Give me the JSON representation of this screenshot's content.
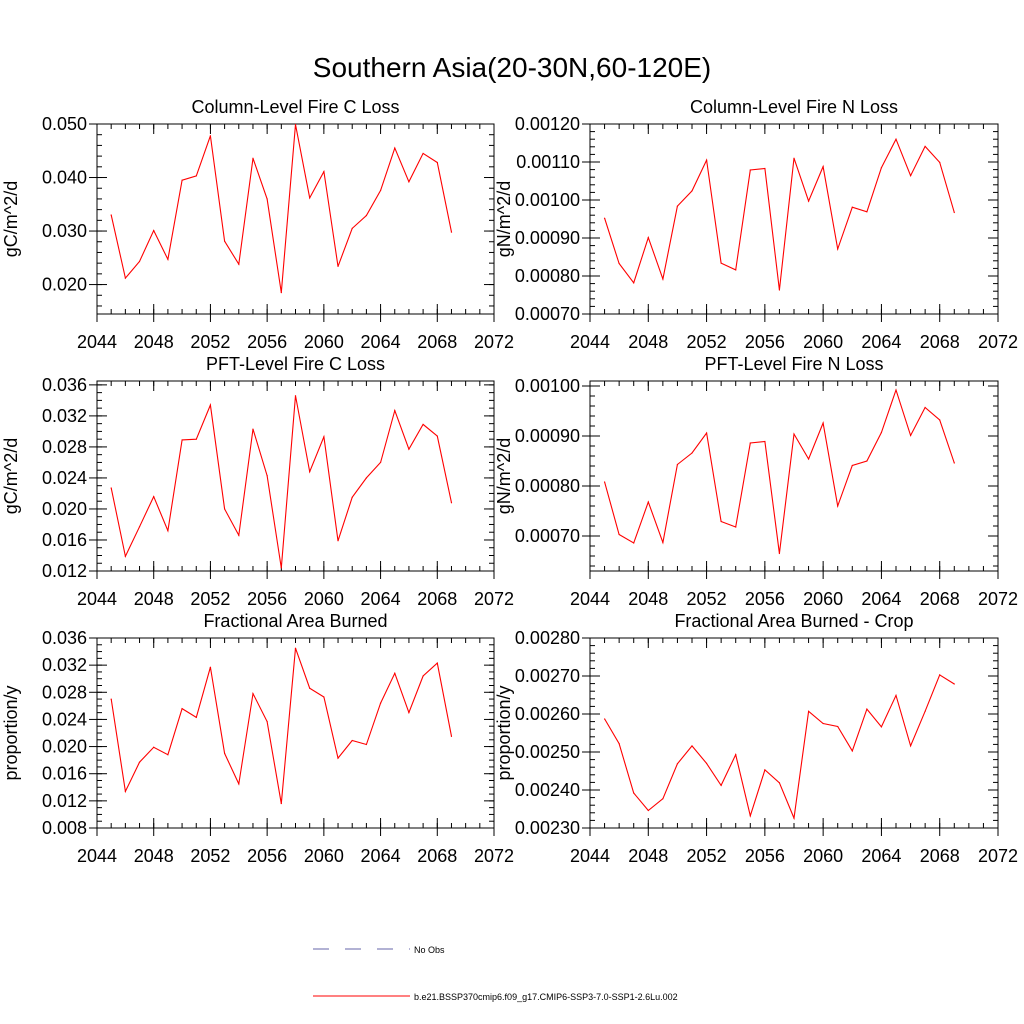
{
  "figure_title": "Southern Asia(20-30N,60-120E)",
  "legend": [
    {
      "label": "No Obs",
      "color": "#6666aa",
      "dash": true
    },
    {
      "label": "b.e21.BSSP370cmip6.f09_g17.CMIP6-SSP3-7.0-SSP1-2.6Lu.002",
      "color": "#ff0000",
      "dash": false
    }
  ],
  "colors": {
    "series": "#ff0000",
    "axis": "#000000"
  },
  "chart_data": [
    {
      "type": "line",
      "title": "Column-Level Fire C Loss",
      "xlabel": "",
      "ylabel": "gC/m^2/d",
      "xlim": [
        2044,
        2072
      ],
      "ylim": [
        0.0145,
        0.05
      ],
      "xticks": [
        2044,
        2048,
        2052,
        2056,
        2060,
        2064,
        2068,
        2072
      ],
      "xtick_labels": [
        "2044",
        "2048",
        "2052",
        "2056",
        "2060",
        "2064",
        "2068",
        "2072"
      ],
      "yticks": [
        0.02,
        0.03,
        0.04,
        0.05
      ],
      "ytick_labels": [
        "0.020",
        "0.030",
        "0.040",
        "0.050"
      ],
      "yminor": 0.002,
      "x": [
        2045,
        2046,
        2047,
        2048,
        2049,
        2050,
        2051,
        2052,
        2053,
        2054,
        2055,
        2056,
        2057,
        2058,
        2059,
        2060,
        2061,
        2062,
        2063,
        2064,
        2065,
        2066,
        2067,
        2068,
        2069
      ],
      "series": [
        {
          "values": [
            0.033,
            0.0212,
            0.0243,
            0.0301,
            0.0247,
            0.0395,
            0.0403,
            0.0478,
            0.0281,
            0.0238,
            0.0436,
            0.036,
            0.0185,
            0.0499,
            0.0362,
            0.0411,
            0.0234,
            0.0305,
            0.0329,
            0.0376,
            0.0455,
            0.0392,
            0.0445,
            0.0428,
            0.0298
          ]
        }
      ]
    },
    {
      "type": "line",
      "title": "Column-Level Fire N Loss",
      "xlabel": "",
      "ylabel": "gN/m^2/d",
      "xlim": [
        2044,
        2072
      ],
      "ylim": [
        0.0007,
        0.0012
      ],
      "xticks": [
        2044,
        2048,
        2052,
        2056,
        2060,
        2064,
        2068,
        2072
      ],
      "xtick_labels": [
        "2044",
        "2048",
        "2052",
        "2056",
        "2060",
        "2064",
        "2068",
        "2072"
      ],
      "yticks": [
        0.0007,
        0.0008,
        0.0009,
        0.001,
        0.0011,
        0.0012
      ],
      "ytick_labels": [
        "0.00070",
        "0.00080",
        "0.00090",
        "0.00100",
        "0.00110",
        "0.00120"
      ],
      "yminor": 2e-05,
      "x": [
        2045,
        2046,
        2047,
        2048,
        2049,
        2050,
        2051,
        2052,
        2053,
        2054,
        2055,
        2056,
        2057,
        2058,
        2059,
        2060,
        2061,
        2062,
        2063,
        2064,
        2065,
        2066,
        2067,
        2068,
        2069
      ],
      "series": [
        {
          "values": [
            0.000952,
            0.000833,
            0.000782,
            0.000901,
            0.000792,
            0.000984,
            0.001024,
            0.001105,
            0.000834,
            0.000816,
            0.001079,
            0.001083,
            0.000763,
            0.00111,
            0.000997,
            0.001088,
            0.000871,
            0.000981,
            0.000969,
            0.001085,
            0.00116,
            0.001064,
            0.001141,
            0.001099,
            0.000967
          ]
        }
      ]
    },
    {
      "type": "line",
      "title": "PFT-Level Fire C Loss",
      "xlabel": "",
      "ylabel": "gC/m^2/d",
      "xlim": [
        2044,
        2072
      ],
      "ylim": [
        0.012,
        0.0365
      ],
      "xticks": [
        2044,
        2048,
        2052,
        2056,
        2060,
        2064,
        2068,
        2072
      ],
      "xtick_labels": [
        "2044",
        "2048",
        "2052",
        "2056",
        "2060",
        "2064",
        "2068",
        "2072"
      ],
      "yticks": [
        0.012,
        0.016,
        0.02,
        0.024,
        0.028,
        0.032,
        0.036
      ],
      "ytick_labels": [
        "0.012",
        "0.016",
        "0.020",
        "0.024",
        "0.028",
        "0.032",
        "0.036"
      ],
      "yminor": 0.001,
      "x": [
        2045,
        2046,
        2047,
        2048,
        2049,
        2050,
        2051,
        2052,
        2053,
        2054,
        2055,
        2056,
        2057,
        2058,
        2059,
        2060,
        2061,
        2062,
        2063,
        2064,
        2065,
        2066,
        2067,
        2068,
        2069
      ],
      "series": [
        {
          "values": [
            0.0227,
            0.0139,
            0.0177,
            0.0216,
            0.0172,
            0.0289,
            0.029,
            0.0334,
            0.02,
            0.0166,
            0.0303,
            0.0243,
            0.0124,
            0.0346,
            0.0248,
            0.0293,
            0.0159,
            0.0215,
            0.024,
            0.026,
            0.0327,
            0.0277,
            0.0309,
            0.0294,
            0.0208
          ]
        }
      ]
    },
    {
      "type": "line",
      "title": "PFT-Level Fire N Loss",
      "xlabel": "",
      "ylabel": "gN/m^2/d",
      "xlim": [
        2044,
        2072
      ],
      "ylim": [
        0.00063,
        0.00101
      ],
      "xticks": [
        2044,
        2048,
        2052,
        2056,
        2060,
        2064,
        2068,
        2072
      ],
      "xtick_labels": [
        "2044",
        "2048",
        "2052",
        "2056",
        "2060",
        "2064",
        "2068",
        "2072"
      ],
      "yticks": [
        0.0007,
        0.0008,
        0.0009,
        0.001
      ],
      "ytick_labels": [
        "0.00070",
        "0.00080",
        "0.00090",
        "0.00100"
      ],
      "yminor": 2e-05,
      "x": [
        2045,
        2046,
        2047,
        2048,
        2049,
        2050,
        2051,
        2052,
        2053,
        2054,
        2055,
        2056,
        2057,
        2058,
        2059,
        2060,
        2061,
        2062,
        2063,
        2064,
        2065,
        2066,
        2067,
        2068,
        2069
      ],
      "series": [
        {
          "values": [
            0.000808,
            0.000703,
            0.000686,
            0.000768,
            0.000687,
            0.000843,
            0.000866,
            0.000906,
            0.000729,
            0.000718,
            0.000886,
            0.000889,
            0.000665,
            0.000904,
            0.000854,
            0.000926,
            0.00076,
            0.000841,
            0.00085,
            0.000907,
            0.000992,
            0.000901,
            0.000957,
            0.000932,
            0.000846
          ]
        }
      ]
    },
    {
      "type": "line",
      "title": "Fractional Area Burned",
      "xlabel": "",
      "ylabel": "proportion/y",
      "xlim": [
        2044,
        2072
      ],
      "ylim": [
        0.008,
        0.036
      ],
      "xticks": [
        2044,
        2048,
        2052,
        2056,
        2060,
        2064,
        2068,
        2072
      ],
      "xtick_labels": [
        "2044",
        "2048",
        "2052",
        "2056",
        "2060",
        "2064",
        "2068",
        "2072"
      ],
      "yticks": [
        0.008,
        0.012,
        0.016,
        0.02,
        0.024,
        0.028,
        0.032,
        0.036
      ],
      "ytick_labels": [
        "0.008",
        "0.012",
        "0.016",
        "0.020",
        "0.024",
        "0.028",
        "0.032",
        "0.036"
      ],
      "yminor": 0.001,
      "x": [
        2045,
        2046,
        2047,
        2048,
        2049,
        2050,
        2051,
        2052,
        2053,
        2054,
        2055,
        2056,
        2057,
        2058,
        2059,
        2060,
        2061,
        2062,
        2063,
        2064,
        2065,
        2066,
        2067,
        2068,
        2069
      ],
      "series": [
        {
          "values": [
            0.027,
            0.0134,
            0.0177,
            0.0199,
            0.0188,
            0.0256,
            0.0243,
            0.0317,
            0.019,
            0.0145,
            0.0278,
            0.0237,
            0.0116,
            0.0345,
            0.0286,
            0.0273,
            0.0183,
            0.0209,
            0.0203,
            0.0264,
            0.0308,
            0.025,
            0.0304,
            0.0323,
            0.0215
          ]
        }
      ]
    },
    {
      "type": "line",
      "title": "Fractional Area Burned - Crop",
      "xlabel": "",
      "ylabel": "proportion/y",
      "xlim": [
        2044,
        2072
      ],
      "ylim": [
        0.0023,
        0.0028
      ],
      "xticks": [
        2044,
        2048,
        2052,
        2056,
        2060,
        2064,
        2068,
        2072
      ],
      "xtick_labels": [
        "2044",
        "2048",
        "2052",
        "2056",
        "2060",
        "2064",
        "2068",
        "2072"
      ],
      "yticks": [
        0.0023,
        0.0024,
        0.0025,
        0.0026,
        0.0027,
        0.0028
      ],
      "ytick_labels": [
        "0.00230",
        "0.00240",
        "0.00250",
        "0.00260",
        "0.00270",
        "0.00280"
      ],
      "yminor": 2e-05,
      "x": [
        2045,
        2046,
        2047,
        2048,
        2049,
        2050,
        2051,
        2052,
        2053,
        2054,
        2055,
        2056,
        2057,
        2058,
        2059,
        2060,
        2061,
        2062,
        2063,
        2064,
        2065,
        2066,
        2067,
        2068,
        2069
      ],
      "series": [
        {
          "values": [
            0.002587,
            0.002522,
            0.002392,
            0.002346,
            0.002377,
            0.002469,
            0.002516,
            0.00247,
            0.002412,
            0.002493,
            0.002332,
            0.002453,
            0.002419,
            0.002326,
            0.002607,
            0.002575,
            0.002567,
            0.002503,
            0.002613,
            0.002566,
            0.002649,
            0.002516,
            0.002607,
            0.002703,
            0.002679
          ]
        }
      ]
    }
  ]
}
